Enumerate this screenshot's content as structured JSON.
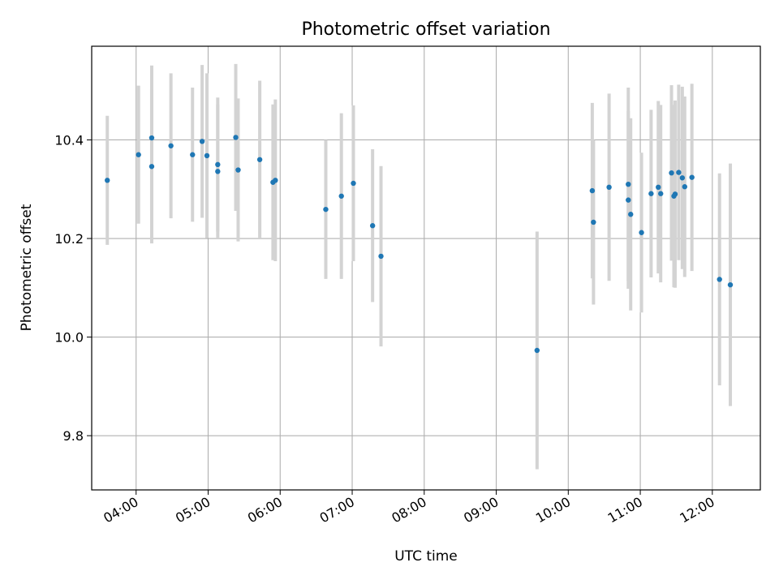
{
  "chart_data": {
    "type": "scatter",
    "title": "Photometric offset variation",
    "xlabel": "UTC time",
    "ylabel": "Photometric offset",
    "x_unit": "UTC time (HH:MM)",
    "xlim": [
      "03:23",
      "12:40"
    ],
    "ylim": [
      9.69,
      10.59
    ],
    "x_ticks": [
      "04:00",
      "05:00",
      "06:00",
      "07:00",
      "08:00",
      "09:00",
      "10:00",
      "11:00",
      "12:00"
    ],
    "y_ticks": [
      9.8,
      10.0,
      10.2,
      10.4
    ],
    "grid": true,
    "legend": "none",
    "marker_color": "#1f77b4",
    "errorbar_color": "#d3d3d3",
    "points": [
      {
        "x": "03:36",
        "y": 10.318,
        "err": 0.131
      },
      {
        "x": "04:02",
        "y": 10.37,
        "err": 0.14
      },
      {
        "x": "04:13",
        "y": 10.404,
        "err": 0.147
      },
      {
        "x": "04:13",
        "y": 10.346,
        "err": 0.156
      },
      {
        "x": "04:29",
        "y": 10.388,
        "err": 0.147
      },
      {
        "x": "04:47",
        "y": 10.37,
        "err": 0.136
      },
      {
        "x": "04:55",
        "y": 10.397,
        "err": 0.155
      },
      {
        "x": "04:59",
        "y": 10.368,
        "err": 0.167
      },
      {
        "x": "05:08",
        "y": 10.35,
        "err": 0.136
      },
      {
        "x": "05:08",
        "y": 10.336,
        "err": 0.136
      },
      {
        "x": "05:23",
        "y": 10.405,
        "err": 0.149
      },
      {
        "x": "05:25",
        "y": 10.339,
        "err": 0.145
      },
      {
        "x": "05:43",
        "y": 10.36,
        "err": 0.16
      },
      {
        "x": "05:54",
        "y": 10.314,
        "err": 0.158
      },
      {
        "x": "05:56",
        "y": 10.318,
        "err": 0.164
      },
      {
        "x": "06:38",
        "y": 10.259,
        "err": 0.141
      },
      {
        "x": "06:51",
        "y": 10.286,
        "err": 0.168
      },
      {
        "x": "07:01",
        "y": 10.312,
        "err": 0.158
      },
      {
        "x": "07:17",
        "y": 10.226,
        "err": 0.155
      },
      {
        "x": "07:24",
        "y": 10.164,
        "err": 0.183
      },
      {
        "x": "09:34",
        "y": 9.973,
        "err": 0.241
      },
      {
        "x": "10:20",
        "y": 10.297,
        "err": 0.178
      },
      {
        "x": "10:21",
        "y": 10.233,
        "err": 0.167
      },
      {
        "x": "10:34",
        "y": 10.304,
        "err": 0.19
      },
      {
        "x": "10:50",
        "y": 10.31,
        "err": 0.196
      },
      {
        "x": "10:50",
        "y": 10.278,
        "err": 0.18
      },
      {
        "x": "10:52",
        "y": 10.249,
        "err": 0.195
      },
      {
        "x": "11:01",
        "y": 10.212,
        "err": 0.162
      },
      {
        "x": "11:09",
        "y": 10.291,
        "err": 0.17
      },
      {
        "x": "11:15",
        "y": 10.304,
        "err": 0.175
      },
      {
        "x": "11:17",
        "y": 10.291,
        "err": 0.18
      },
      {
        "x": "11:26",
        "y": 10.333,
        "err": 0.178
      },
      {
        "x": "11:28",
        "y": 10.286,
        "err": 0.185
      },
      {
        "x": "11:29",
        "y": 10.29,
        "err": 0.19
      },
      {
        "x": "11:32",
        "y": 10.334,
        "err": 0.178
      },
      {
        "x": "11:35",
        "y": 10.323,
        "err": 0.185
      },
      {
        "x": "11:37",
        "y": 10.305,
        "err": 0.183
      },
      {
        "x": "11:43",
        "y": 10.324,
        "err": 0.19
      },
      {
        "x": "12:06",
        "y": 10.117,
        "err": 0.215
      },
      {
        "x": "12:15",
        "y": 10.106,
        "err": 0.246
      }
    ]
  }
}
